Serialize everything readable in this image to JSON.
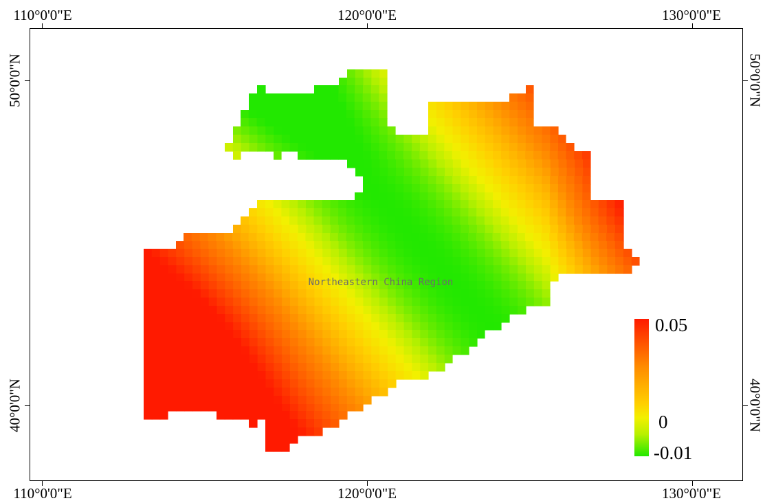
{
  "map": {
    "region_label": "Northeastern China Region",
    "lon_labels": [
      "110°0'0\"E",
      "120°0'0\"E",
      "130°0'0\"E"
    ],
    "lat_labels": [
      "50°0'0\"N",
      "40°0'0\"N"
    ],
    "lon_values": [
      110,
      120,
      130
    ],
    "lat_values": [
      50,
      40
    ]
  },
  "legend": {
    "max_label": "0.05",
    "mid_label": "0",
    "min_label": "-0.01",
    "max_value": 0.05,
    "mid_value": 0,
    "min_value": -0.01,
    "colors": [
      "#ff1a00",
      "#ff8c00",
      "#ffd000",
      "#f2f000",
      "#b8f000",
      "#22e800"
    ]
  }
}
